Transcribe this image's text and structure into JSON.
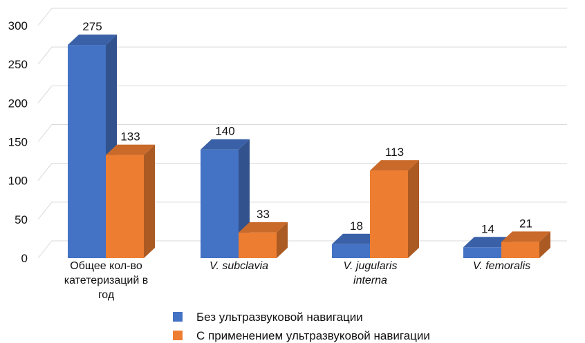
{
  "chart_data": {
    "type": "bar3d",
    "categories": [
      "Общее кол-во катетеризаций в год",
      "V. subclavia",
      "V. jugularis interna",
      "V. femoralis"
    ],
    "category_italic": [
      false,
      true,
      true,
      true
    ],
    "series": [
      {
        "name": "Без ультразвуковой навигации",
        "color": "#4472c4",
        "values": [
          275,
          140,
          18,
          14
        ]
      },
      {
        "name": "С применением ультразвуковой навигации",
        "color": "#ed7d31",
        "values": [
          133,
          33,
          113,
          21
        ]
      }
    ],
    "ylim": [
      0,
      300
    ],
    "yticks": [
      0,
      50,
      100,
      150,
      200,
      250,
      300
    ],
    "grid": true
  }
}
